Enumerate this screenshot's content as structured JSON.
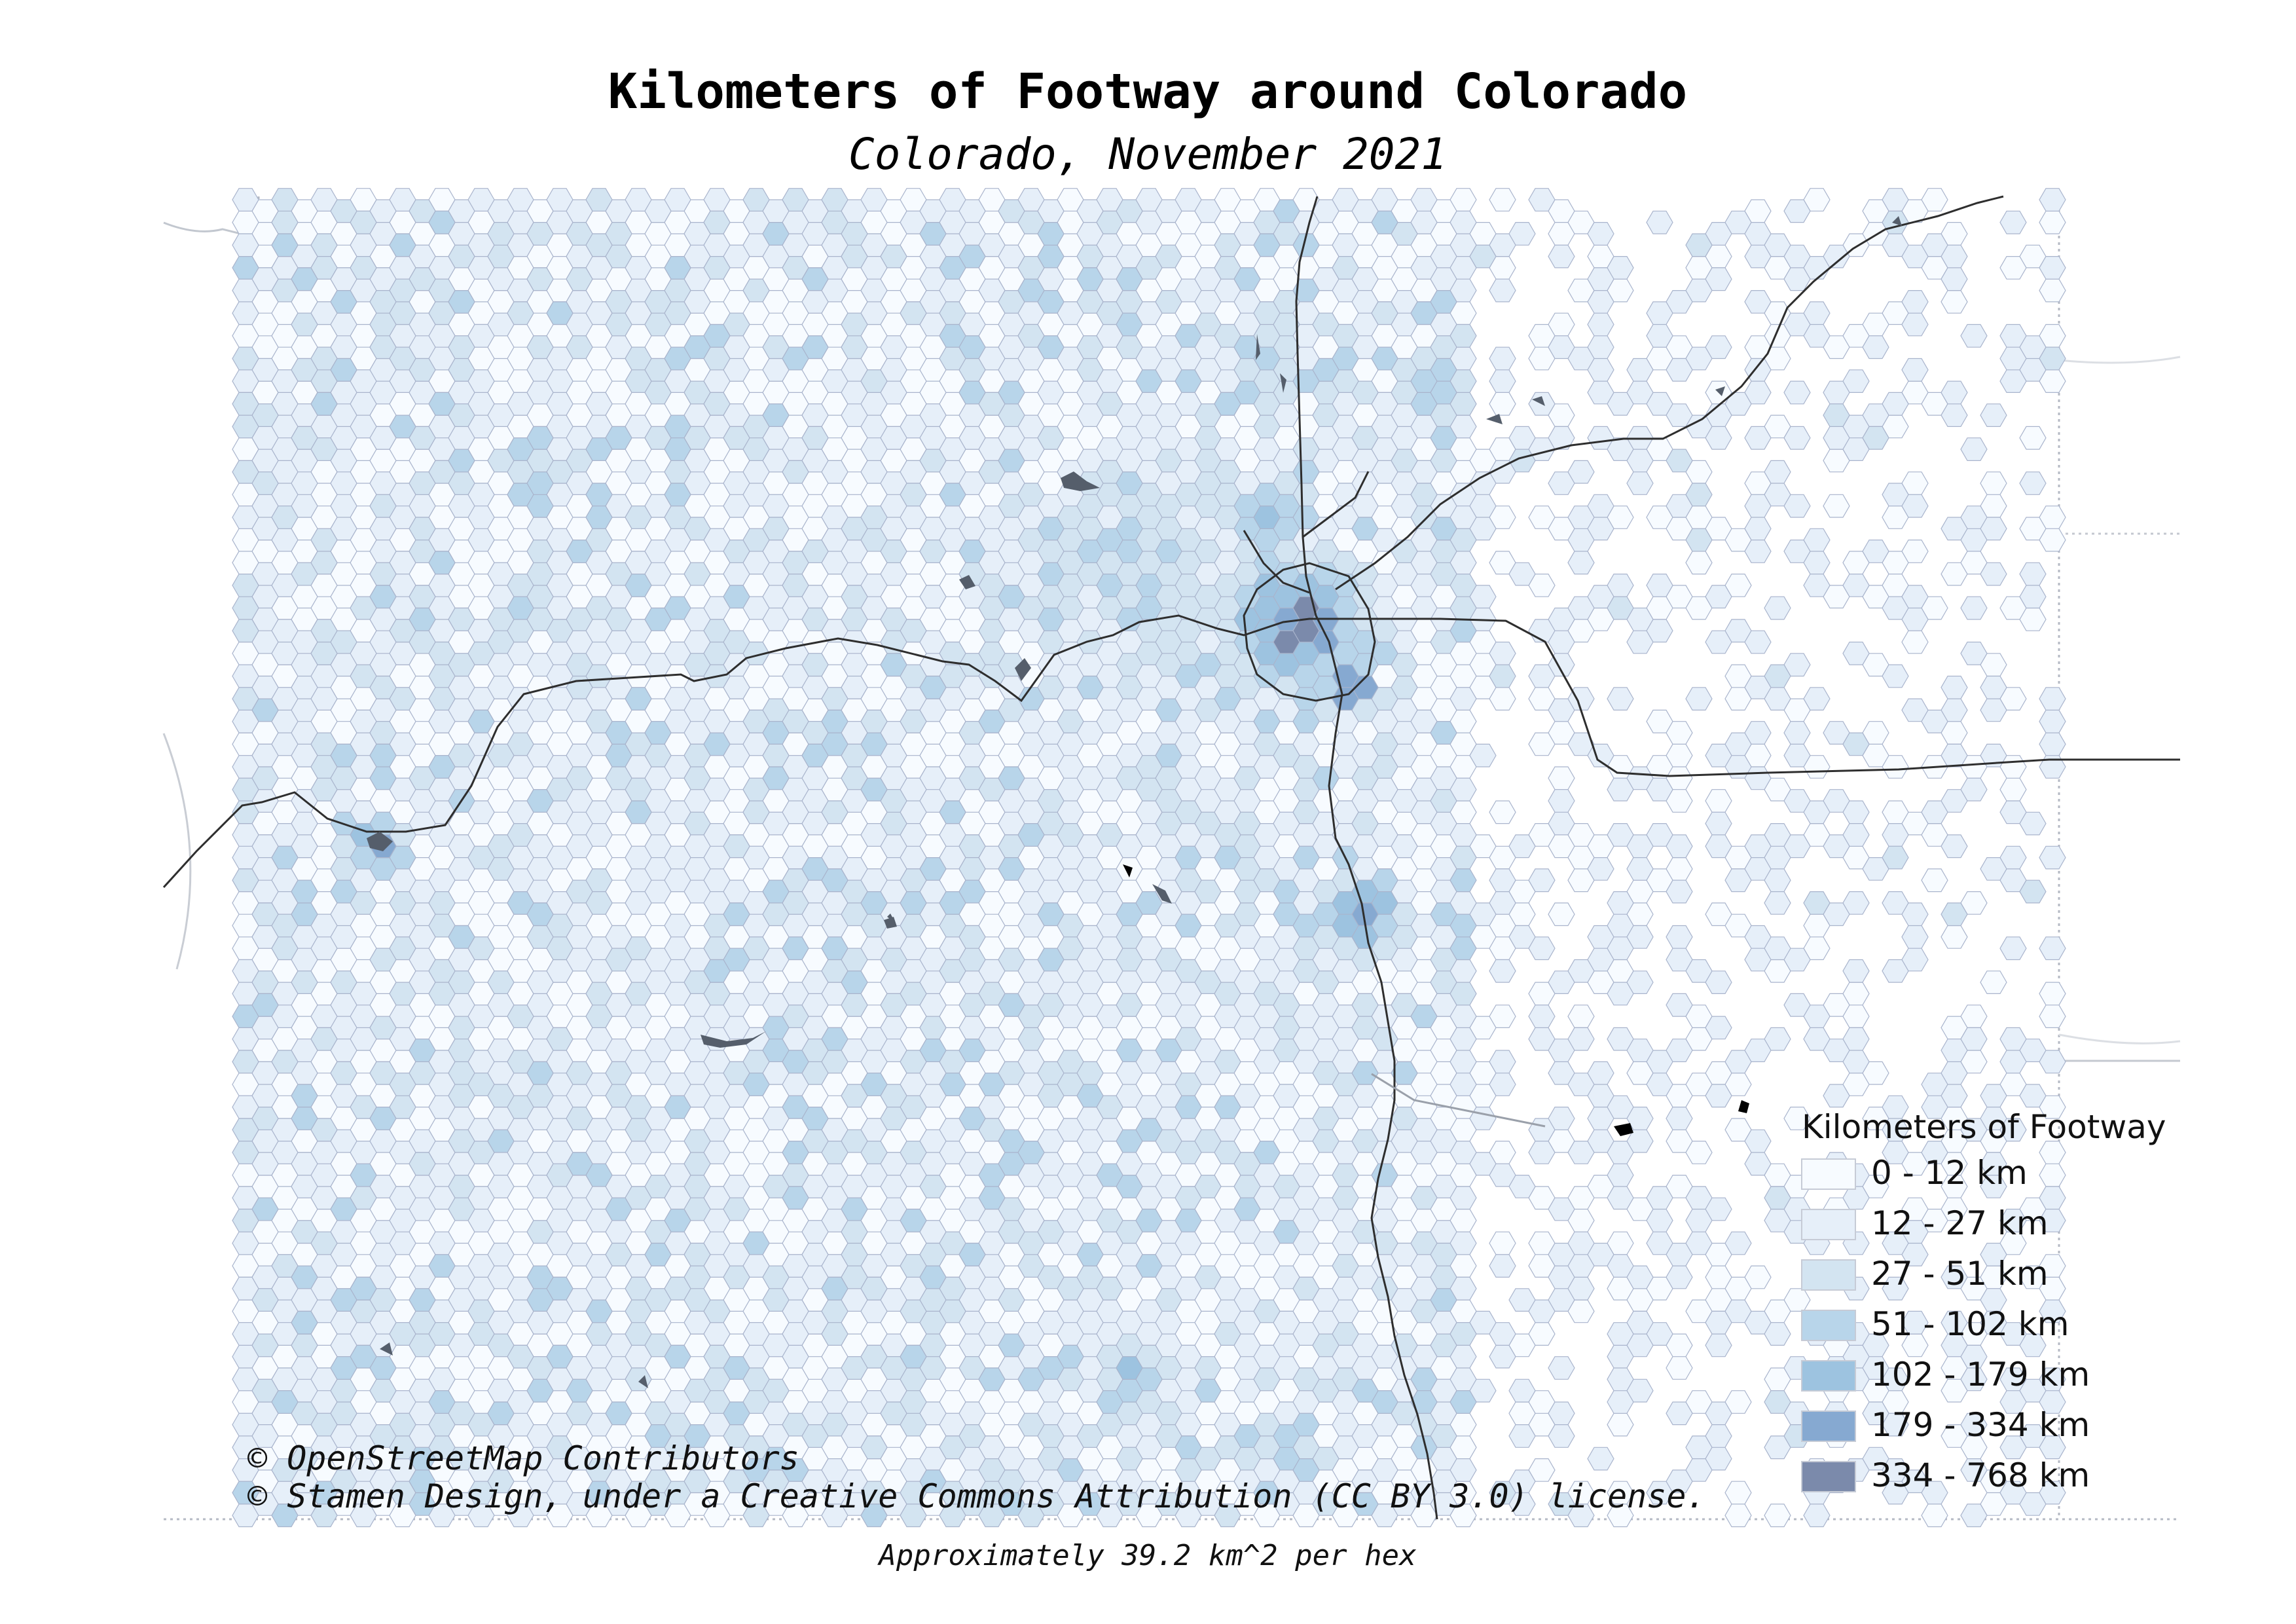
{
  "title": "Kilometers of Footway around Colorado",
  "subtitle": "Colorado, November 2021",
  "legend": {
    "title": "Kilometers of Footway",
    "classes": [
      {
        "label": "0 - 12 km",
        "color": "#f7fbff"
      },
      {
        "label": "12 - 27 km",
        "color": "#e6eff9"
      },
      {
        "label": "27 - 51 km",
        "color": "#d3e4f1"
      },
      {
        "label": "51 - 102 km",
        "color": "#b8d5ea"
      },
      {
        "label": "102 - 179 km",
        "color": "#9dc3e0"
      },
      {
        "label": "179 - 334 km",
        "color": "#86a9d1"
      },
      {
        "label": "334 - 768 km",
        "color": "#7b8aab"
      }
    ]
  },
  "attribution": {
    "line1": "© OpenStreetMap Contributors",
    "line2": "© Stamen Design, under a Creative Commons Attribution (CC BY 3.0) license."
  },
  "note": "Approximately 39.2 km^2 per hex",
  "colors": {
    "hex_stroke": "#a9b4cc",
    "highway": "#333333",
    "water": "#555e6b",
    "state_border": "#9aa0aa",
    "background": "#ffffff"
  }
}
